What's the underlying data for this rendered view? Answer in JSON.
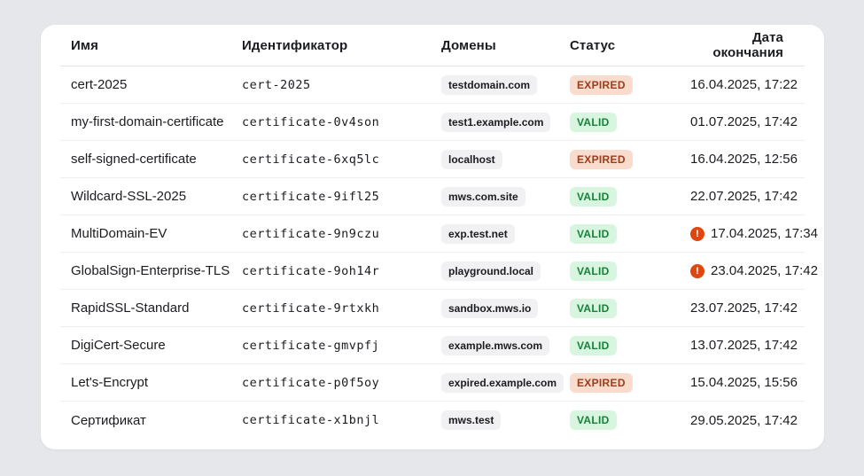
{
  "table": {
    "columns": [
      {
        "key": "name",
        "label": "Имя"
      },
      {
        "key": "id",
        "label": "Идентификатор"
      },
      {
        "key": "domains",
        "label": "Домены"
      },
      {
        "key": "status",
        "label": "Статус"
      },
      {
        "key": "expires",
        "label": "Дата окончания"
      }
    ],
    "rows": [
      {
        "name": "cert-2025",
        "id": "cert-2025",
        "domain": "testdomain.com",
        "status": "EXPIRED",
        "expires": "16.04.2025, 17:22",
        "warning": false
      },
      {
        "name": "my-first-domain-certificate",
        "id": "certificate-0v4son",
        "domain": "test1.example.com",
        "status": "VALID",
        "expires": "01.07.2025, 17:42",
        "warning": false
      },
      {
        "name": "self-signed-certificate",
        "id": "certificate-6xq5lc",
        "domain": "localhost",
        "status": "EXPIRED",
        "expires": "16.04.2025, 12:56",
        "warning": false
      },
      {
        "name": "Wildcard-SSL-2025",
        "id": "certificate-9ifl25",
        "domain": "mws.com.site",
        "status": "VALID",
        "expires": "22.07.2025, 17:42",
        "warning": false
      },
      {
        "name": "MultiDomain-EV",
        "id": "certificate-9n9czu",
        "domain": "exp.test.net",
        "status": "VALID",
        "expires": "17.04.2025, 17:34",
        "warning": true
      },
      {
        "name": "GlobalSign-Enterprise-TLS",
        "id": "certificate-9oh14r",
        "domain": "playground.local",
        "status": "VALID",
        "expires": "23.04.2025, 17:42",
        "warning": true
      },
      {
        "name": "RapidSSL-Standard",
        "id": "certificate-9rtxkh",
        "domain": "sandbox.mws.io",
        "status": "VALID",
        "expires": "23.07.2025, 17:42",
        "warning": false
      },
      {
        "name": "DigiCert-Secure",
        "id": "certificate-gmvpfj",
        "domain": "example.mws.com",
        "status": "VALID",
        "expires": "13.07.2025, 17:42",
        "warning": false
      },
      {
        "name": "Let's-Encrypt",
        "id": "certificate-p0f5oy",
        "domain": "expired.example.com",
        "status": "EXPIRED",
        "expires": "15.04.2025, 15:56",
        "warning": false
      },
      {
        "name": "Сертификат",
        "id": "certificate-x1bnjl",
        "domain": "mws.test",
        "status": "VALID",
        "expires": "29.05.2025, 17:42",
        "warning": false
      }
    ],
    "status_colors": {
      "valid_bg": "#d8f6df",
      "valid_fg": "#17813a",
      "expired_bg": "#f9dccd",
      "expired_fg": "#9c3c1a"
    },
    "warning_icon": {
      "name": "exclamation-circle-icon",
      "glyph": "!",
      "color": "#df470e"
    }
  },
  "page": {
    "background": "#e5e7ea",
    "card_background": "#ffffff"
  }
}
